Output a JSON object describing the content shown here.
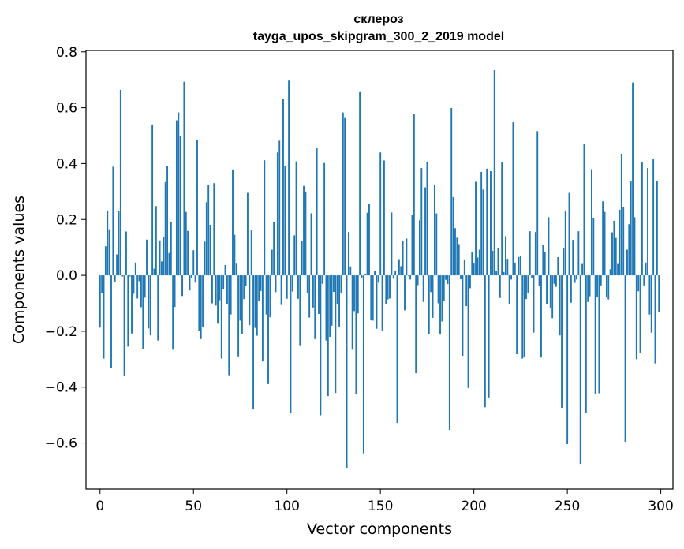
{
  "chart_data": {
    "type": "bar",
    "title": "склероз",
    "subtitle": "tayga_upos_skipgram_300_2_2019 model",
    "xlabel": "Vector components",
    "ylabel": "Components values",
    "xlim": [
      -7.5,
      306.5
    ],
    "ylim": [
      -0.765,
      0.805
    ],
    "xticks": [
      0,
      50,
      100,
      150,
      200,
      250,
      300
    ],
    "yticks": [
      -0.6,
      -0.4,
      -0.2,
      0.0,
      0.2,
      0.4,
      0.6,
      0.8
    ],
    "ytick_labels": [
      "−0.6",
      "−0.4",
      "−0.2",
      "0.0",
      "0.2",
      "0.4",
      "0.6",
      "0.8"
    ],
    "bar_color": "#1f77b4",
    "x": "0..299",
    "values": [
      -0.187,
      -0.062,
      -0.298,
      0.104,
      0.232,
      0.165,
      -0.331,
      0.389,
      -0.022,
      0.075,
      0.23,
      0.664,
      -0.004,
      -0.361,
      0.157,
      -0.255,
      -0.004,
      -0.208,
      -0.066,
      0.046,
      -0.083,
      -0.021,
      -0.114,
      -0.265,
      -0.08,
      0.128,
      -0.19,
      -0.215,
      0.54,
      0.024,
      0.248,
      -0.233,
      0.125,
      0.05,
      0.138,
      0.334,
      0.391,
      0.08,
      0.19,
      -0.266,
      -0.113,
      0.555,
      0.583,
      0.499,
      -0.074,
      0.693,
      0.227,
      0.159,
      -0.054,
      -0.008,
      0.09,
      -0.026,
      0.483,
      -0.198,
      -0.228,
      -0.183,
      0.121,
      0.262,
      0.325,
      0.181,
      -0.1,
      0.33,
      -0.108,
      -0.173,
      -0.089,
      -0.298,
      -0.051,
      0.037,
      -0.102,
      -0.36,
      -0.14,
      0.379,
      0.145,
      0.042,
      -0.29,
      -0.162,
      -0.21,
      -0.085,
      -0.038,
      0.295,
      -0.178,
      0.164,
      -0.48,
      -0.188,
      -0.216,
      -0.092,
      -0.056,
      -0.308,
      0.412,
      -0.14,
      -0.389,
      -0.15,
      0.092,
      0.192,
      -0.06,
      0.44,
      0.482,
      -0.106,
      0.632,
      0.392,
      -0.084,
      0.697,
      -0.492,
      -0.058,
      0.143,
      0.408,
      -0.084,
      -0.253,
      0.124,
      0.32,
      0.3,
      -0.062,
      -0.151,
      0.222,
      -0.115,
      -0.228,
      0.455,
      -0.138,
      -0.501,
      -0.03,
      0.402,
      -0.233,
      -0.432,
      -0.22,
      -0.18,
      -0.059,
      -0.421,
      -0.104,
      -0.183,
      -0.062,
      0.583,
      0.566,
      -0.689,
      0.155,
      0.032,
      -0.266,
      -0.128,
      -0.425,
      -0.136,
      0.656,
      -0.008,
      -0.637,
      0.004,
      0.224,
      0.255,
      -0.161,
      -0.162,
      0.015,
      -0.191,
      -0.026,
      0.44,
      -0.197,
      0.411,
      -0.102,
      -0.086,
      -0.083,
      0.225,
      -0.012,
      0.017,
      -0.528,
      0.058,
      0.033,
      0.124,
      -0.125,
      0.132,
      -0.002,
      -0.015,
      0.216,
      0.577,
      -0.35,
      -0.035,
      0.197,
      0.384,
      -0.095,
      0.315,
      0.405,
      -0.21,
      -0.06,
      -0.152,
      0.322,
      0.222,
      -0.1,
      -0.212,
      -0.165,
      -0.093,
      -0.016,
      -0.031,
      -0.553,
      0.599,
      0.28,
      0.169,
      0.135,
      0.112,
      -0.014,
      -0.288,
      0.057,
      -0.11,
      -0.403,
      -0.046,
      0.082,
      0.044,
      0.335,
      0.064,
      0.092,
      0.37,
      0.307,
      -0.472,
      0.382,
      -0.437,
      0.373,
      0.088,
      0.734,
      0.016,
      0.098,
      -0.081,
      0.406,
      0.012,
      0.14,
      0.059,
      -0.103,
      -0.015,
      0.548,
      0.046,
      -0.282,
      0.066,
      0.07,
      -0.298,
      -0.292,
      -0.085,
      -0.062,
      0.158,
      -0.008,
      -0.205,
      0.155,
      0.516,
      -0.037,
      -0.294,
      0.109,
      0.084,
      -0.103,
      0.208,
      -0.118,
      -0.153,
      -0.03,
      -0.041,
      0.065,
      -0.215,
      -0.474,
      0.096,
      0.232,
      -0.604,
      0.295,
      -0.098,
      0.127,
      -0.027,
      -0.015,
      0.158,
      -0.675,
      0.041,
      0.471,
      -0.491,
      -0.095,
      -0.075,
      0.38,
      0.205,
      -0.424,
      -0.079,
      -0.422,
      -0.036,
      0.265,
      0.227,
      -0.079,
      -0.086,
      0.022,
      0.154,
      0.195,
      0.134,
      0.041,
      0.235,
      0.435,
      0.245,
      -0.596,
      0.092,
      0.183,
      0.339,
      0.69,
      0.208,
      -0.3,
      -0.057,
      -0.277,
      0.407,
      -0.036,
      0.046,
      0.384,
      -0.14,
      -0.205,
      0.416,
      -0.315,
      0.338,
      -0.13
    ]
  }
}
